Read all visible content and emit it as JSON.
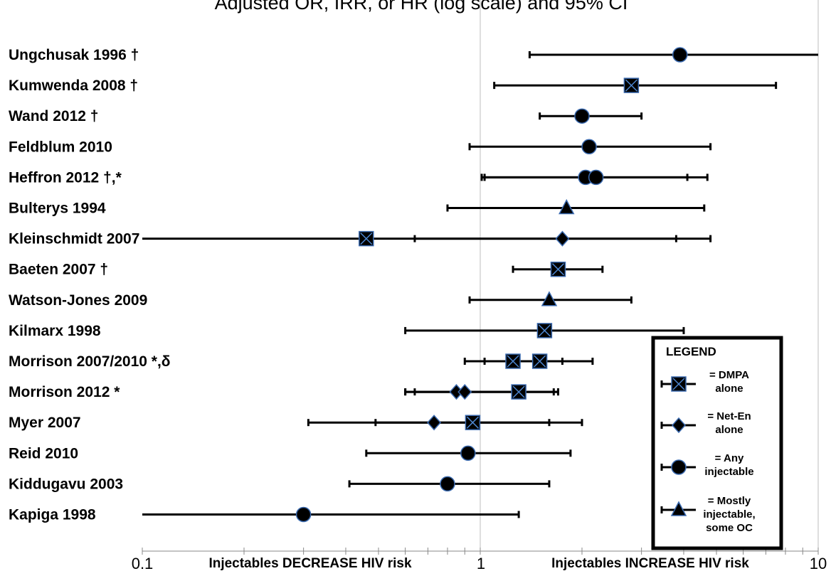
{
  "chart_data": {
    "type": "forest",
    "title": "Adjusted OR, IRR, or HR (log scale) and 95% CI",
    "x_scale": "log",
    "xlim": [
      0.1,
      10
    ],
    "x_ticks": [
      "0.1",
      "1",
      "10"
    ],
    "x_left_note": "Injectables DECREASE HIV risk",
    "x_right_note": "Injectables INCREASE HIV risk",
    "reference_line": 1,
    "rows": [
      {
        "label": "Ungchusak 1996",
        "mark": "†",
        "estimates": [
          {
            "marker": "circle",
            "point": 3.9,
            "lo": 1.4,
            "hi": 10
          }
        ]
      },
      {
        "label": "Kumwenda 2008",
        "mark": "†",
        "estimates": [
          {
            "marker": "dmpa",
            "point": 2.8,
            "lo": 1.1,
            "hi": 7.5
          }
        ]
      },
      {
        "label": "Wand 2012",
        "mark": "†",
        "estimates": [
          {
            "marker": "circle",
            "point": 2.0,
            "lo": 1.5,
            "hi": 3.0
          }
        ]
      },
      {
        "label": "Feldblum 2010",
        "mark": "",
        "estimates": [
          {
            "marker": "circle",
            "point": 2.1,
            "lo": 0.93,
            "hi": 4.8
          }
        ]
      },
      {
        "label": "Heffron 2012",
        "mark": "†,*",
        "estimates": [
          {
            "marker": "circle",
            "point": 2.05,
            "lo": 1.01,
            "hi": 4.1
          },
          {
            "marker": "circle",
            "point": 2.2,
            "lo": 1.03,
            "hi": 4.7
          }
        ]
      },
      {
        "label": "Bulterys 1994",
        "mark": "",
        "estimates": [
          {
            "marker": "triangle",
            "point": 1.8,
            "lo": 0.8,
            "hi": 4.6
          }
        ]
      },
      {
        "label": "Kleinschmidt 2007",
        "mark": "",
        "estimates": [
          {
            "marker": "dmpa",
            "point": 0.46,
            "lo": 0.1,
            "hi": 4.8
          },
          {
            "marker": "diamond",
            "point": 1.75,
            "lo": 0.64,
            "hi": 3.8
          }
        ]
      },
      {
        "label": "Baeten 2007",
        "mark": "†",
        "estimates": [
          {
            "marker": "dmpa",
            "point": 1.7,
            "lo": 1.25,
            "hi": 2.3
          }
        ]
      },
      {
        "label": "Watson-Jones 2009",
        "mark": "",
        "estimates": [
          {
            "marker": "triangle",
            "point": 1.6,
            "lo": 0.93,
            "hi": 2.8
          }
        ]
      },
      {
        "label": "Kilmarx 1998",
        "mark": "",
        "estimates": [
          {
            "marker": "dmpa",
            "point": 1.55,
            "lo": 0.6,
            "hi": 4.0
          }
        ]
      },
      {
        "label": "Morrison 2007/2010",
        "mark": "*,δ",
        "estimates": [
          {
            "marker": "dmpa",
            "point": 1.25,
            "lo": 0.9,
            "hi": 1.75
          },
          {
            "marker": "dmpa",
            "point": 1.5,
            "lo": 1.03,
            "hi": 2.15
          }
        ]
      },
      {
        "label": "Morrison 2012",
        "mark": "*",
        "estimates": [
          {
            "marker": "diamond",
            "point": 0.85,
            "lo": 0.6,
            "hi": 1.65
          },
          {
            "marker": "diamond",
            "point": 0.9,
            "lo": 0.64,
            "hi": 1.7
          },
          {
            "marker": "dmpa",
            "point": 1.3,
            "lo": 0.6,
            "hi": 1.7
          }
        ]
      },
      {
        "label": "Myer 2007",
        "mark": "",
        "estimates": [
          {
            "marker": "diamond",
            "point": 0.73,
            "lo": 0.49,
            "hi": 1.6
          },
          {
            "marker": "dmpa",
            "point": 0.95,
            "lo": 0.31,
            "hi": 2.0
          }
        ]
      },
      {
        "label": "Reid 2010",
        "mark": "",
        "estimates": [
          {
            "marker": "circle",
            "point": 0.92,
            "lo": 0.46,
            "hi": 1.85
          }
        ]
      },
      {
        "label": "Kiddugavu 2003",
        "mark": "",
        "estimates": [
          {
            "marker": "circle",
            "point": 0.8,
            "lo": 0.41,
            "hi": 1.6
          }
        ]
      },
      {
        "label": "Kapiga 1998",
        "mark": "",
        "estimates": [
          {
            "marker": "circle",
            "point": 0.3,
            "lo": 0.1,
            "hi": 1.3
          }
        ]
      }
    ],
    "legend": {
      "title": "LEGEND",
      "position": "bottom-right",
      "entries": [
        {
          "marker": "dmpa",
          "lines": [
            "= DMPA",
            "alone"
          ]
        },
        {
          "marker": "diamond",
          "lines": [
            "= Net-En",
            "alone"
          ]
        },
        {
          "marker": "circle",
          "lines": [
            "= Any",
            "injectable"
          ]
        },
        {
          "marker": "triangle",
          "lines": [
            "= Mostly",
            "injectable,",
            "some OC"
          ]
        }
      ]
    }
  }
}
